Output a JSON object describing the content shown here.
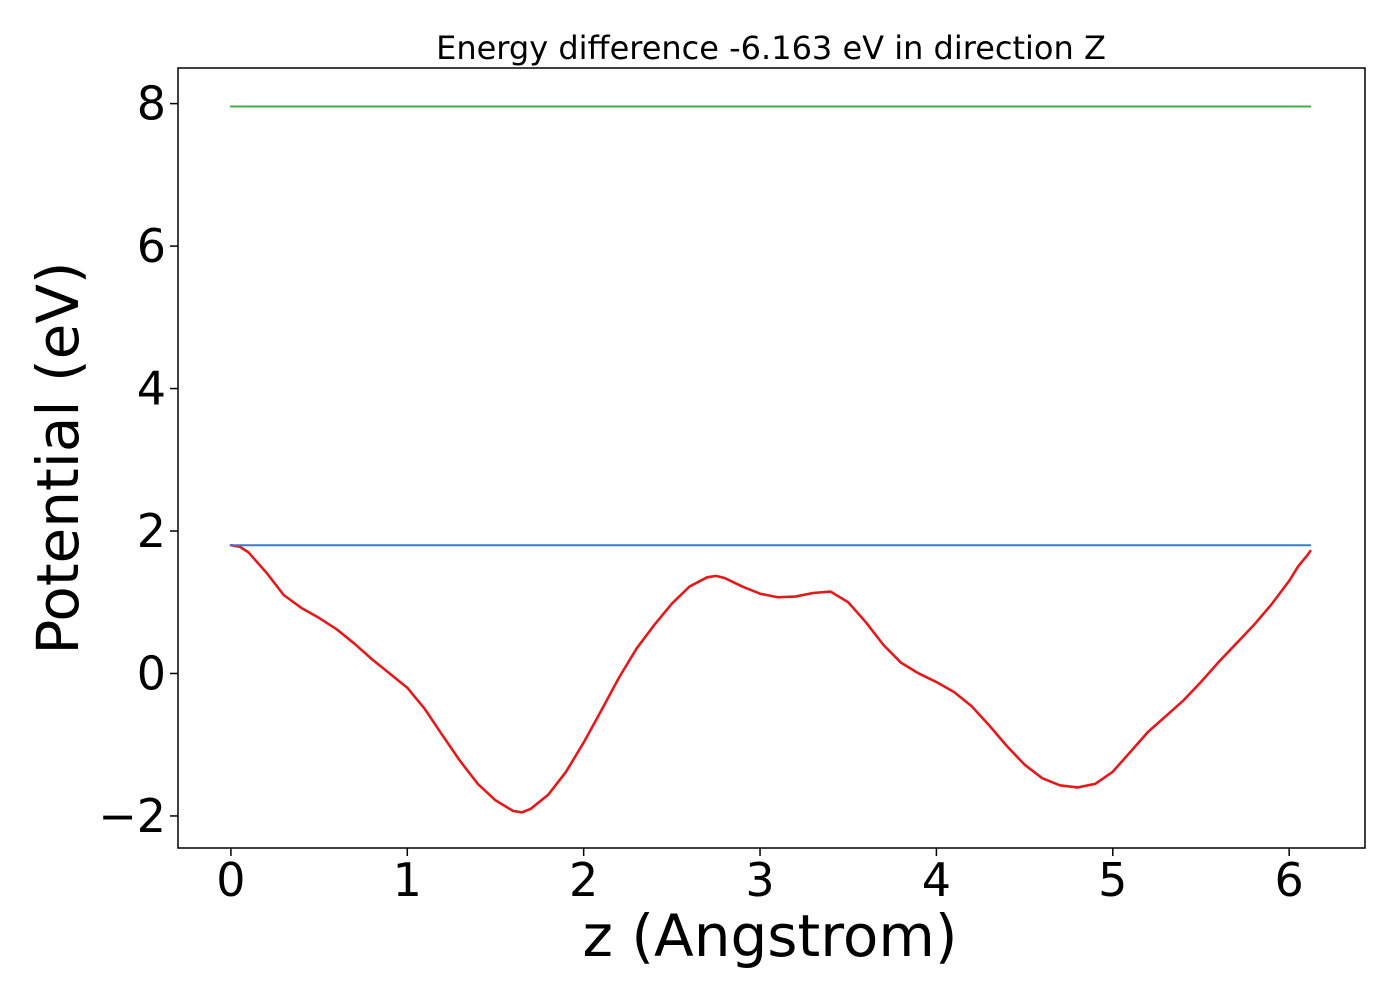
{
  "chart_data": {
    "type": "line",
    "title": "Energy difference -6.163 eV in direction Z",
    "xlabel": "z (Angstrom)",
    "ylabel": "Potential (eV)",
    "xlim": [
      -0.3,
      6.43
    ],
    "ylim": [
      -2.45,
      8.5
    ],
    "xticks": [
      0,
      1,
      2,
      3,
      4,
      5,
      6
    ],
    "yticks": [
      -2,
      0,
      2,
      4,
      6,
      8
    ],
    "grid": false,
    "legend": "none",
    "colors": {
      "potential": "#e31a1c",
      "level_low": "#3a7dc0",
      "level_high": "#3fae44"
    },
    "series": [
      {
        "key": "potential",
        "x": [
          0,
          0.05,
          0.1,
          0.2,
          0.3,
          0.4,
          0.5,
          0.6,
          0.7,
          0.8,
          0.9,
          1.0,
          1.1,
          1.2,
          1.3,
          1.4,
          1.5,
          1.6,
          1.65,
          1.7,
          1.8,
          1.9,
          2.0,
          2.1,
          2.2,
          2.3,
          2.4,
          2.5,
          2.6,
          2.7,
          2.75,
          2.8,
          2.9,
          3.0,
          3.1,
          3.2,
          3.3,
          3.4,
          3.5,
          3.6,
          3.7,
          3.8,
          3.9,
          4.0,
          4.1,
          4.2,
          4.3,
          4.4,
          4.5,
          4.6,
          4.7,
          4.8,
          4.9,
          5.0,
          5.1,
          5.2,
          5.3,
          5.4,
          5.5,
          5.6,
          5.7,
          5.8,
          5.9,
          6.0,
          6.05,
          6.1,
          6.12
        ],
        "y": [
          1.8,
          1.78,
          1.7,
          1.42,
          1.1,
          0.92,
          0.78,
          0.62,
          0.42,
          0.2,
          0.0,
          -0.2,
          -0.5,
          -0.87,
          -1.23,
          -1.55,
          -1.78,
          -1.93,
          -1.95,
          -1.9,
          -1.7,
          -1.38,
          -0.97,
          -0.52,
          -0.06,
          0.35,
          0.68,
          0.98,
          1.22,
          1.35,
          1.37,
          1.34,
          1.22,
          1.12,
          1.07,
          1.08,
          1.13,
          1.15,
          1.0,
          0.72,
          0.4,
          0.15,
          0.0,
          -0.12,
          -0.26,
          -0.46,
          -0.73,
          -1.02,
          -1.28,
          -1.47,
          -1.57,
          -1.6,
          -1.55,
          -1.38,
          -1.1,
          -0.82,
          -0.6,
          -0.38,
          -0.12,
          0.16,
          0.42,
          0.68,
          0.97,
          1.3,
          1.5,
          1.65,
          1.72
        ]
      },
      {
        "key": "level_low",
        "x": [
          0,
          6.12
        ],
        "y": [
          1.8,
          1.8
        ]
      },
      {
        "key": "level_high",
        "x": [
          0,
          6.12
        ],
        "y": [
          7.96,
          7.96
        ]
      }
    ]
  }
}
